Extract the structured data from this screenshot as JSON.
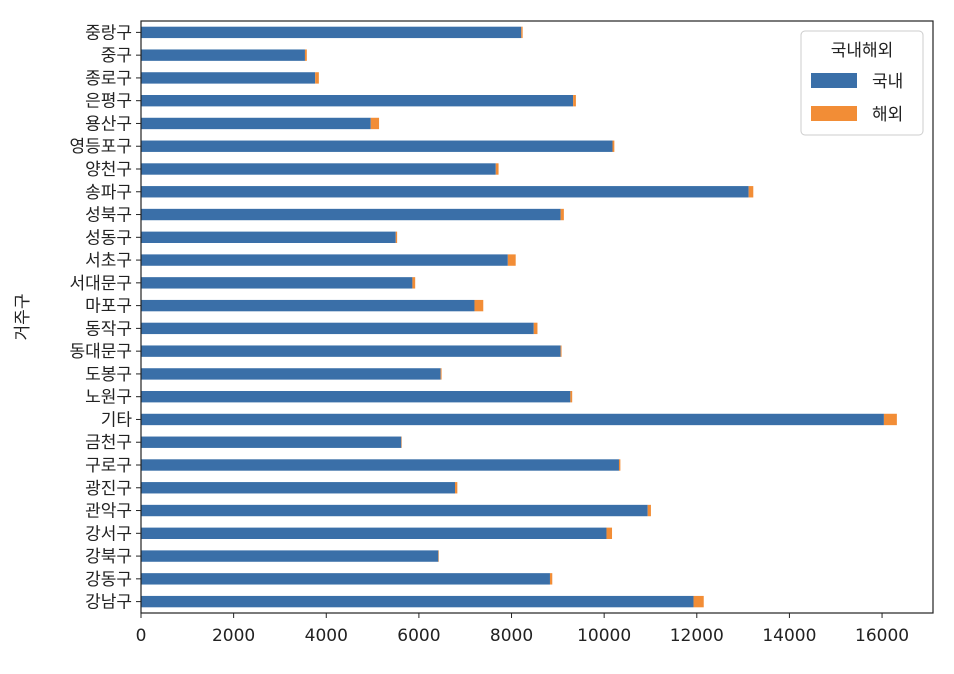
{
  "chart_data": {
    "type": "bar",
    "orientation": "horizontal",
    "stacked": true,
    "ylabel": "거주구",
    "xlabel": "",
    "xlim": [
      0,
      17100
    ],
    "xticks": [
      0,
      2000,
      4000,
      6000,
      8000,
      10000,
      12000,
      14000,
      16000
    ],
    "legend": {
      "title": "국내해외",
      "position": "top-right"
    },
    "categories": [
      "강남구",
      "강동구",
      "강북구",
      "강서구",
      "관악구",
      "광진구",
      "구로구",
      "금천구",
      "기타",
      "노원구",
      "도봉구",
      "동대문구",
      "동작구",
      "마포구",
      "서대문구",
      "서초구",
      "성동구",
      "성북구",
      "송파구",
      "양천구",
      "영등포구",
      "용산구",
      "은평구",
      "종로구",
      "중구",
      "중랑구"
    ],
    "series": [
      {
        "name": "국내",
        "color": "#3a6fa8",
        "values": [
          11930,
          8830,
          6420,
          10050,
          10940,
          6780,
          10320,
          5620,
          16040,
          9270,
          6470,
          9060,
          8480,
          7200,
          5860,
          7920,
          5500,
          9060,
          13120,
          7660,
          10180,
          4960,
          9330,
          3760,
          3540,
          8210
        ]
      },
      {
        "name": "해외",
        "color": "#f28d36",
        "values": [
          220,
          50,
          10,
          120,
          70,
          50,
          30,
          10,
          280,
          40,
          20,
          20,
          80,
          190,
          60,
          170,
          30,
          70,
          100,
          60,
          40,
          180,
          60,
          80,
          40,
          30
        ]
      }
    ]
  }
}
